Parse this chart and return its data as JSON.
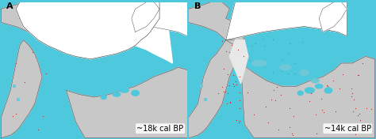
{
  "figsize": [
    4.74,
    1.76
  ],
  "dpi": 100,
  "background_color": "#4DC8DC",
  "panel_A_label": "A",
  "panel_B_label": "B",
  "panel_A_caption": "~18k cal BP",
  "panel_B_caption": "~14k cal BP",
  "ocean_color": "#4DC8DC",
  "ice_color": "#FFFFFF",
  "land_exposed_color": "#C8C8C8",
  "land_ice_free_color": "#F0F0F0",
  "glacial_lake_color": "#6FC8D8",
  "red_dot_color": "#DD2222",
  "blue_dot_color": "#4499CC",
  "outline_color": "#333333",
  "label_fontsize": 8,
  "caption_fontsize": 7
}
